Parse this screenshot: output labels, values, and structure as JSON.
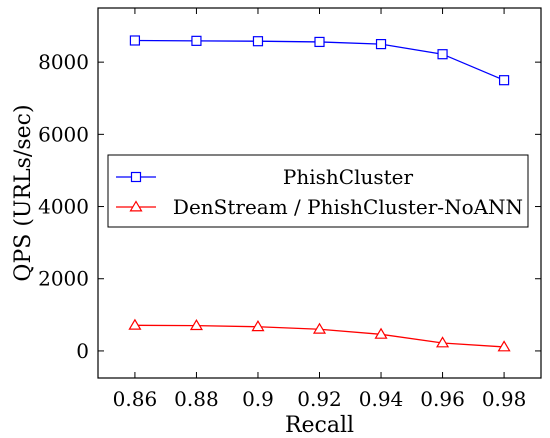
{
  "chart_data": {
    "type": "line",
    "title": "",
    "xlabel": "Recall",
    "ylabel": "QPS (URLs/sec)",
    "x": [
      0.86,
      0.88,
      0.9,
      0.92,
      0.94,
      0.96,
      0.98
    ],
    "x_tick_labels": [
      "0.86",
      "0.88",
      "0.9",
      "0.92",
      "0.94",
      "0.96",
      "0.98"
    ],
    "y_ticks": [
      0,
      2000,
      4000,
      6000,
      8000
    ],
    "y_tick_labels": [
      "0",
      "2000",
      "4000",
      "6000",
      "8000"
    ],
    "xlim": [
      0.848,
      0.992
    ],
    "ylim": [
      -750,
      9500
    ],
    "grid": false,
    "legend_position": "center-left",
    "series": [
      {
        "name": "PhishCluster",
        "color": "#0000ff",
        "marker": "square",
        "values": [
          8600,
          8590,
          8580,
          8560,
          8500,
          8220,
          7500
        ]
      },
      {
        "name": "DenStream / PhishCluster-NoANN",
        "color": "#ff0000",
        "marker": "triangle",
        "values": [
          710,
          700,
          670,
          600,
          460,
          220,
          110
        ]
      }
    ]
  }
}
